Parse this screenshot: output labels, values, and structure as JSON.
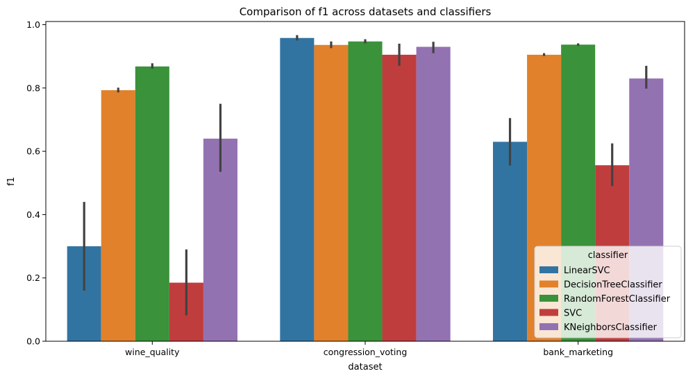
{
  "chart_data": {
    "type": "bar",
    "title": "Comparison of f1 across datasets and classifiers",
    "xlabel": "dataset",
    "ylabel": "f1",
    "categories": [
      "wine_quality",
      "congression_voting",
      "bank_marketing"
    ],
    "ylim": [
      0,
      1.01
    ],
    "yticks": [
      "0.0",
      "0.2",
      "0.4",
      "0.6",
      "0.8",
      "1.0"
    ],
    "ytick_values": [
      0,
      0.2,
      0.4,
      0.6,
      0.8,
      1.0
    ],
    "legend_title": "classifier",
    "legend_position": "lower-right",
    "series": [
      {
        "name": "LinearSVC",
        "color": "#3274a1",
        "values": [
          0.3,
          0.958,
          0.63
        ],
        "err_low": [
          0.16,
          0.95,
          0.555
        ],
        "err_high": [
          0.44,
          0.967,
          0.705
        ]
      },
      {
        "name": "DecisionTreeClassifier",
        "color": "#e1812c",
        "values": [
          0.793,
          0.936,
          0.905
        ],
        "err_low": [
          0.786,
          0.926,
          0.901
        ],
        "err_high": [
          0.801,
          0.947,
          0.91
        ]
      },
      {
        "name": "RandomForestClassifier",
        "color": "#3a923a",
        "values": [
          0.868,
          0.947,
          0.937
        ],
        "err_low": [
          0.861,
          0.941,
          0.933
        ],
        "err_high": [
          0.878,
          0.954,
          0.941
        ]
      },
      {
        "name": "SVC",
        "color": "#c03d3e",
        "values": [
          0.185,
          0.905,
          0.556
        ],
        "err_low": [
          0.082,
          0.87,
          0.49
        ],
        "err_high": [
          0.29,
          0.94,
          0.625
        ]
      },
      {
        "name": "KNeighborsClassifier",
        "color": "#9372b2",
        "values": [
          0.64,
          0.93,
          0.83
        ],
        "err_low": [
          0.535,
          0.91,
          0.798
        ],
        "err_high": [
          0.75,
          0.946,
          0.87
        ]
      }
    ],
    "error_color": "#424242"
  }
}
